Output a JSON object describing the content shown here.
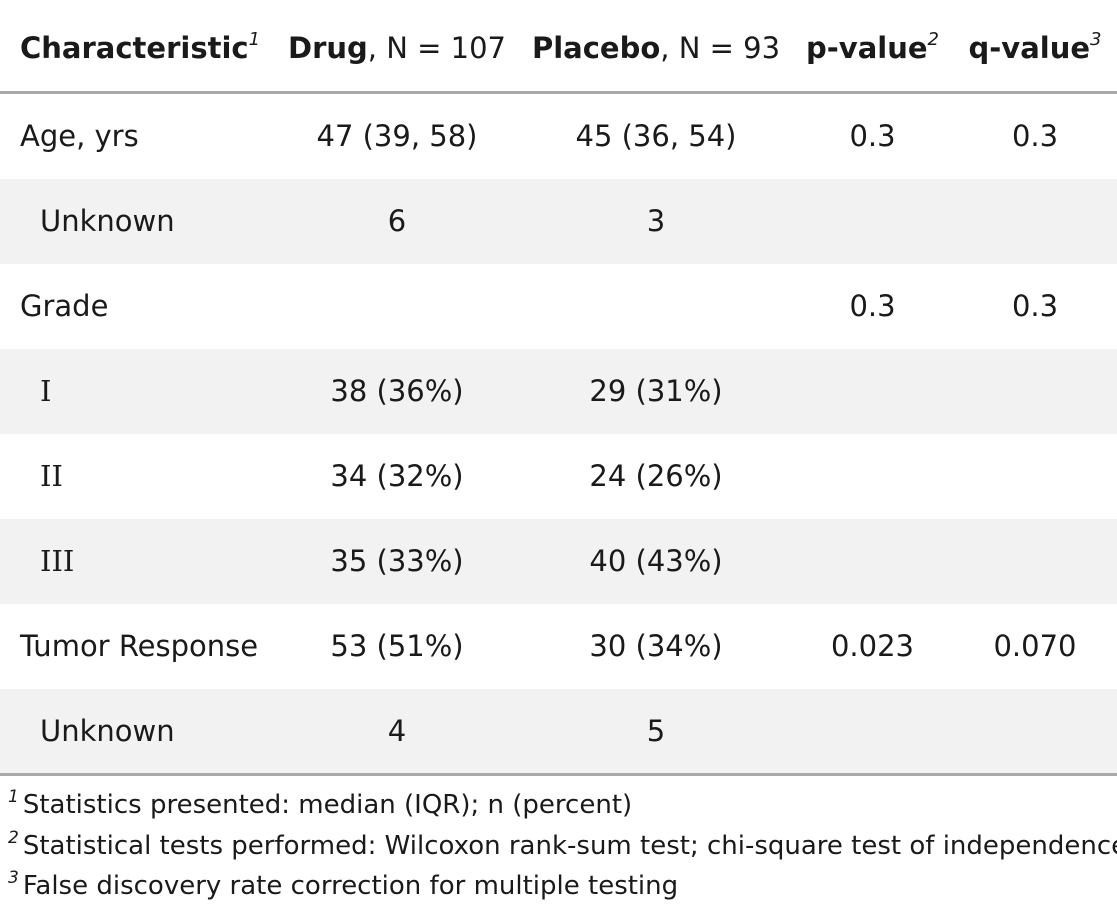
{
  "header": {
    "characteristic": "Characteristic",
    "characteristic_fn": "1",
    "drug_bold": "Drug",
    "drug_rest": ", N = 107",
    "placebo_bold": "Placebo",
    "placebo_rest": ", N = 93",
    "pvalue": "p-value",
    "pvalue_fn": "2",
    "qvalue": "q-value",
    "qvalue_fn": "3"
  },
  "rows": [
    {
      "label": "Age, yrs",
      "drug": "47 (39, 58)",
      "placebo": "45 (36, 54)",
      "p": "0.3",
      "q": "0.3"
    },
    {
      "label": "Unknown",
      "drug": "6",
      "placebo": "3",
      "p": "",
      "q": ""
    },
    {
      "label": "Grade",
      "drug": "",
      "placebo": "",
      "p": "0.3",
      "q": "0.3"
    },
    {
      "label": "I",
      "drug": "38 (36%)",
      "placebo": "29 (31%)",
      "p": "",
      "q": ""
    },
    {
      "label": "II",
      "drug": "34 (32%)",
      "placebo": "24 (26%)",
      "p": "",
      "q": ""
    },
    {
      "label": "III",
      "drug": "35 (33%)",
      "placebo": "40 (43%)",
      "p": "",
      "q": ""
    },
    {
      "label": "Tumor Response",
      "drug": "53 (51%)",
      "placebo": "30 (34%)",
      "p": "0.023",
      "q": "0.070"
    },
    {
      "label": "Unknown",
      "drug": "4",
      "placebo": "5",
      "p": "",
      "q": ""
    }
  ],
  "footnotes": [
    {
      "mark": "1",
      "text": "Statistics presented: median (IQR); n (percent)"
    },
    {
      "mark": "2",
      "text": "Statistical tests performed: Wilcoxon rank-sum test; chi-square test of independence"
    },
    {
      "mark": "3",
      "text": "False discovery rate correction for multiple testing"
    }
  ]
}
